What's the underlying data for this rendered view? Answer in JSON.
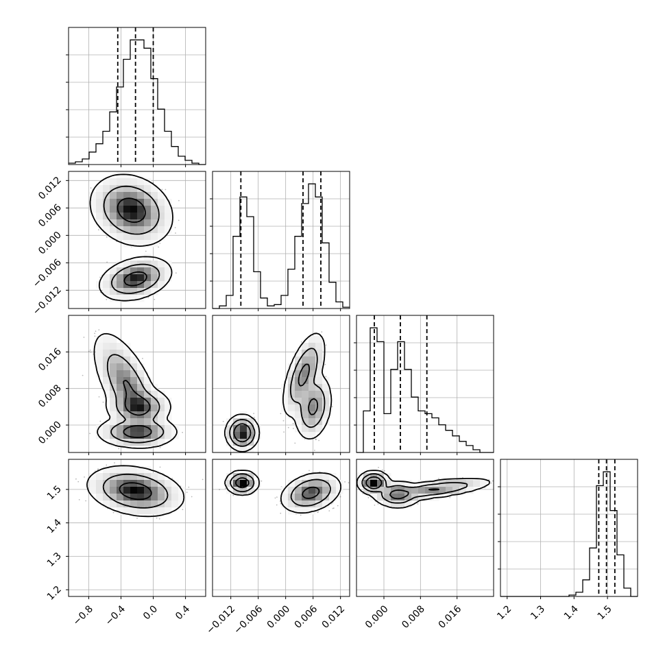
{
  "chart_data": {
    "type": "corner",
    "description_free": true,
    "parameters": [
      {
        "id": "p0",
        "range": [
          -1.05,
          0.65
        ],
        "ticks": [
          -0.8,
          -0.4,
          0.0,
          0.4
        ],
        "tick_labels": [
          "−0.8",
          "−0.4",
          "0.0",
          "0.4"
        ]
      },
      {
        "id": "p1",
        "range": [
          -0.016,
          0.014
        ],
        "ticks": [
          -0.012,
          -0.006,
          0.0,
          0.006,
          0.012
        ],
        "tick_labels": [
          "−0.012",
          "−0.006",
          "0.000",
          "0.006",
          "0.012"
        ]
      },
      {
        "id": "p2",
        "range": [
          -0.006,
          0.024
        ],
        "ticks": [
          0.0,
          0.008,
          0.016
        ],
        "tick_labels": [
          "0.000",
          "0.008",
          "0.016"
        ]
      },
      {
        "id": "p3",
        "range": [
          1.18,
          1.59
        ],
        "ticks": [
          1.2,
          1.3,
          1.4,
          1.5
        ],
        "tick_labels": [
          "1.2",
          "1.3",
          "1.4",
          "1.5"
        ]
      }
    ],
    "histograms": [
      {
        "param": 0,
        "bins": [
          -1.05,
          -0.965,
          -0.88,
          -0.795,
          -0.71,
          -0.625,
          -0.54,
          -0.455,
          -0.37,
          -0.285,
          -0.2,
          -0.115,
          -0.03,
          0.055,
          0.14,
          0.225,
          0.31,
          0.395,
          0.48,
          0.565,
          0.65
        ],
        "counts": [
          1,
          2,
          4,
          9,
          15,
          24,
          38,
          56,
          76,
          90,
          90,
          84,
          62,
          40,
          24,
          13,
          6,
          3,
          1,
          0
        ],
        "quantiles": [
          -0.44,
          -0.22,
          0.0
        ]
      },
      {
        "param": 1,
        "bins": [
          -0.016,
          -0.0145,
          -0.013,
          -0.0115,
          -0.01,
          -0.0085,
          -0.007,
          -0.0055,
          -0.004,
          -0.0025,
          -0.001,
          0.0005,
          0.002,
          0.0035,
          0.005,
          0.0065,
          0.008,
          0.0095,
          0.011,
          0.0125,
          0.014
        ],
        "counts": [
          0,
          2,
          10,
          55,
          85,
          70,
          28,
          8,
          2,
          3,
          10,
          30,
          55,
          80,
          95,
          85,
          50,
          20,
          5,
          1
        ],
        "quantiles": [
          -0.0098,
          0.0038,
          0.0077
        ]
      },
      {
        "param": 2,
        "bins": [
          -0.006,
          -0.0045,
          -0.003,
          -0.0015,
          0.0,
          0.0015,
          0.003,
          0.0045,
          0.006,
          0.0075,
          0.009,
          0.0105,
          0.012,
          0.0135,
          0.015,
          0.0165,
          0.018,
          0.0195,
          0.021,
          0.0225,
          0.024
        ],
        "counts": [
          0,
          30,
          90,
          80,
          28,
          60,
          80,
          60,
          40,
          30,
          28,
          25,
          20,
          16,
          12,
          8,
          5,
          2,
          0,
          0
        ],
        "quantiles": [
          -0.0021,
          0.0036,
          0.0094
        ]
      },
      {
        "param": 3,
        "bins": [
          1.18,
          1.2005,
          1.221,
          1.2415,
          1.262,
          1.2825,
          1.303,
          1.3235,
          1.344,
          1.3645,
          1.385,
          1.4055,
          1.426,
          1.4465,
          1.467,
          1.4875,
          1.508,
          1.5285,
          1.549,
          1.5695,
          1.59
        ],
        "counts": [
          0,
          0,
          0,
          0,
          0,
          0,
          0,
          0,
          0,
          0,
          1,
          3,
          12,
          35,
          80,
          90,
          62,
          30,
          6,
          0
        ],
        "quantiles": [
          1.474,
          1.497,
          1.522
        ]
      }
    ],
    "density_panels": [
      {
        "x": 0,
        "y": 1,
        "modes": [
          {
            "cx": -0.27,
            "cy": 0.0055,
            "sx": 0.17,
            "sy": 0.0026,
            "rho": -0.2,
            "w": 0.67
          },
          {
            "cx": -0.22,
            "cy": -0.0095,
            "sx": 0.15,
            "sy": 0.0016,
            "rho": 0.3,
            "w": 0.33
          }
        ]
      },
      {
        "x": 0,
        "y": 2,
        "modes": [
          {
            "cx": -0.32,
            "cy": 0.0085,
            "sx": 0.15,
            "sy": 0.0042,
            "rho": -0.65,
            "w": 0.45
          },
          {
            "cx": -0.18,
            "cy": 0.004,
            "sx": 0.14,
            "sy": 0.0015,
            "rho": 0.0,
            "w": 0.25
          },
          {
            "cx": -0.2,
            "cy": -0.0015,
            "sx": 0.17,
            "sy": 0.0012,
            "rho": 0.0,
            "w": 0.3
          }
        ]
      },
      {
        "x": 0,
        "y": 3,
        "modes": [
          {
            "cx": -0.22,
            "cy": 1.495,
            "sx": 0.2,
            "sy": 0.025,
            "rho": -0.25,
            "w": 1.0
          }
        ]
      },
      {
        "x": 1,
        "y": 2,
        "modes": [
          {
            "cx": -0.0095,
            "cy": -0.0017,
            "sx": 0.0012,
            "sy": 0.0013,
            "rho": 0.0,
            "w": 0.33
          },
          {
            "cx": 0.006,
            "cy": 0.004,
            "sx": 0.0014,
            "sy": 0.0025,
            "rho": 0.2,
            "w": 0.3
          },
          {
            "cx": 0.004,
            "cy": 0.011,
            "sx": 0.0016,
            "sy": 0.0032,
            "rho": 0.6,
            "w": 0.37
          }
        ]
      },
      {
        "x": 1,
        "y": 3,
        "modes": [
          {
            "cx": -0.0095,
            "cy": 1.52,
            "sx": 0.0012,
            "sy": 0.012,
            "rho": 0.0,
            "w": 0.33
          },
          {
            "cx": 0.0055,
            "cy": 1.49,
            "sx": 0.0022,
            "sy": 0.02,
            "rho": 0.3,
            "w": 0.67
          }
        ]
      },
      {
        "x": 2,
        "y": 3,
        "modes": [
          {
            "cx": -0.0022,
            "cy": 1.52,
            "sx": 0.0012,
            "sy": 0.012,
            "rho": 0.0,
            "w": 0.33
          },
          {
            "cx": 0.003,
            "cy": 1.485,
            "sx": 0.0018,
            "sy": 0.014,
            "rho": 0.0,
            "w": 0.3
          },
          {
            "cx": 0.011,
            "cy": 1.5,
            "sx": 0.0045,
            "sy": 0.012,
            "rho": 0.65,
            "w": 0.37
          }
        ]
      }
    ],
    "grid": true,
    "contour_levels": [
      0.393,
      0.865,
      0.989
    ]
  }
}
